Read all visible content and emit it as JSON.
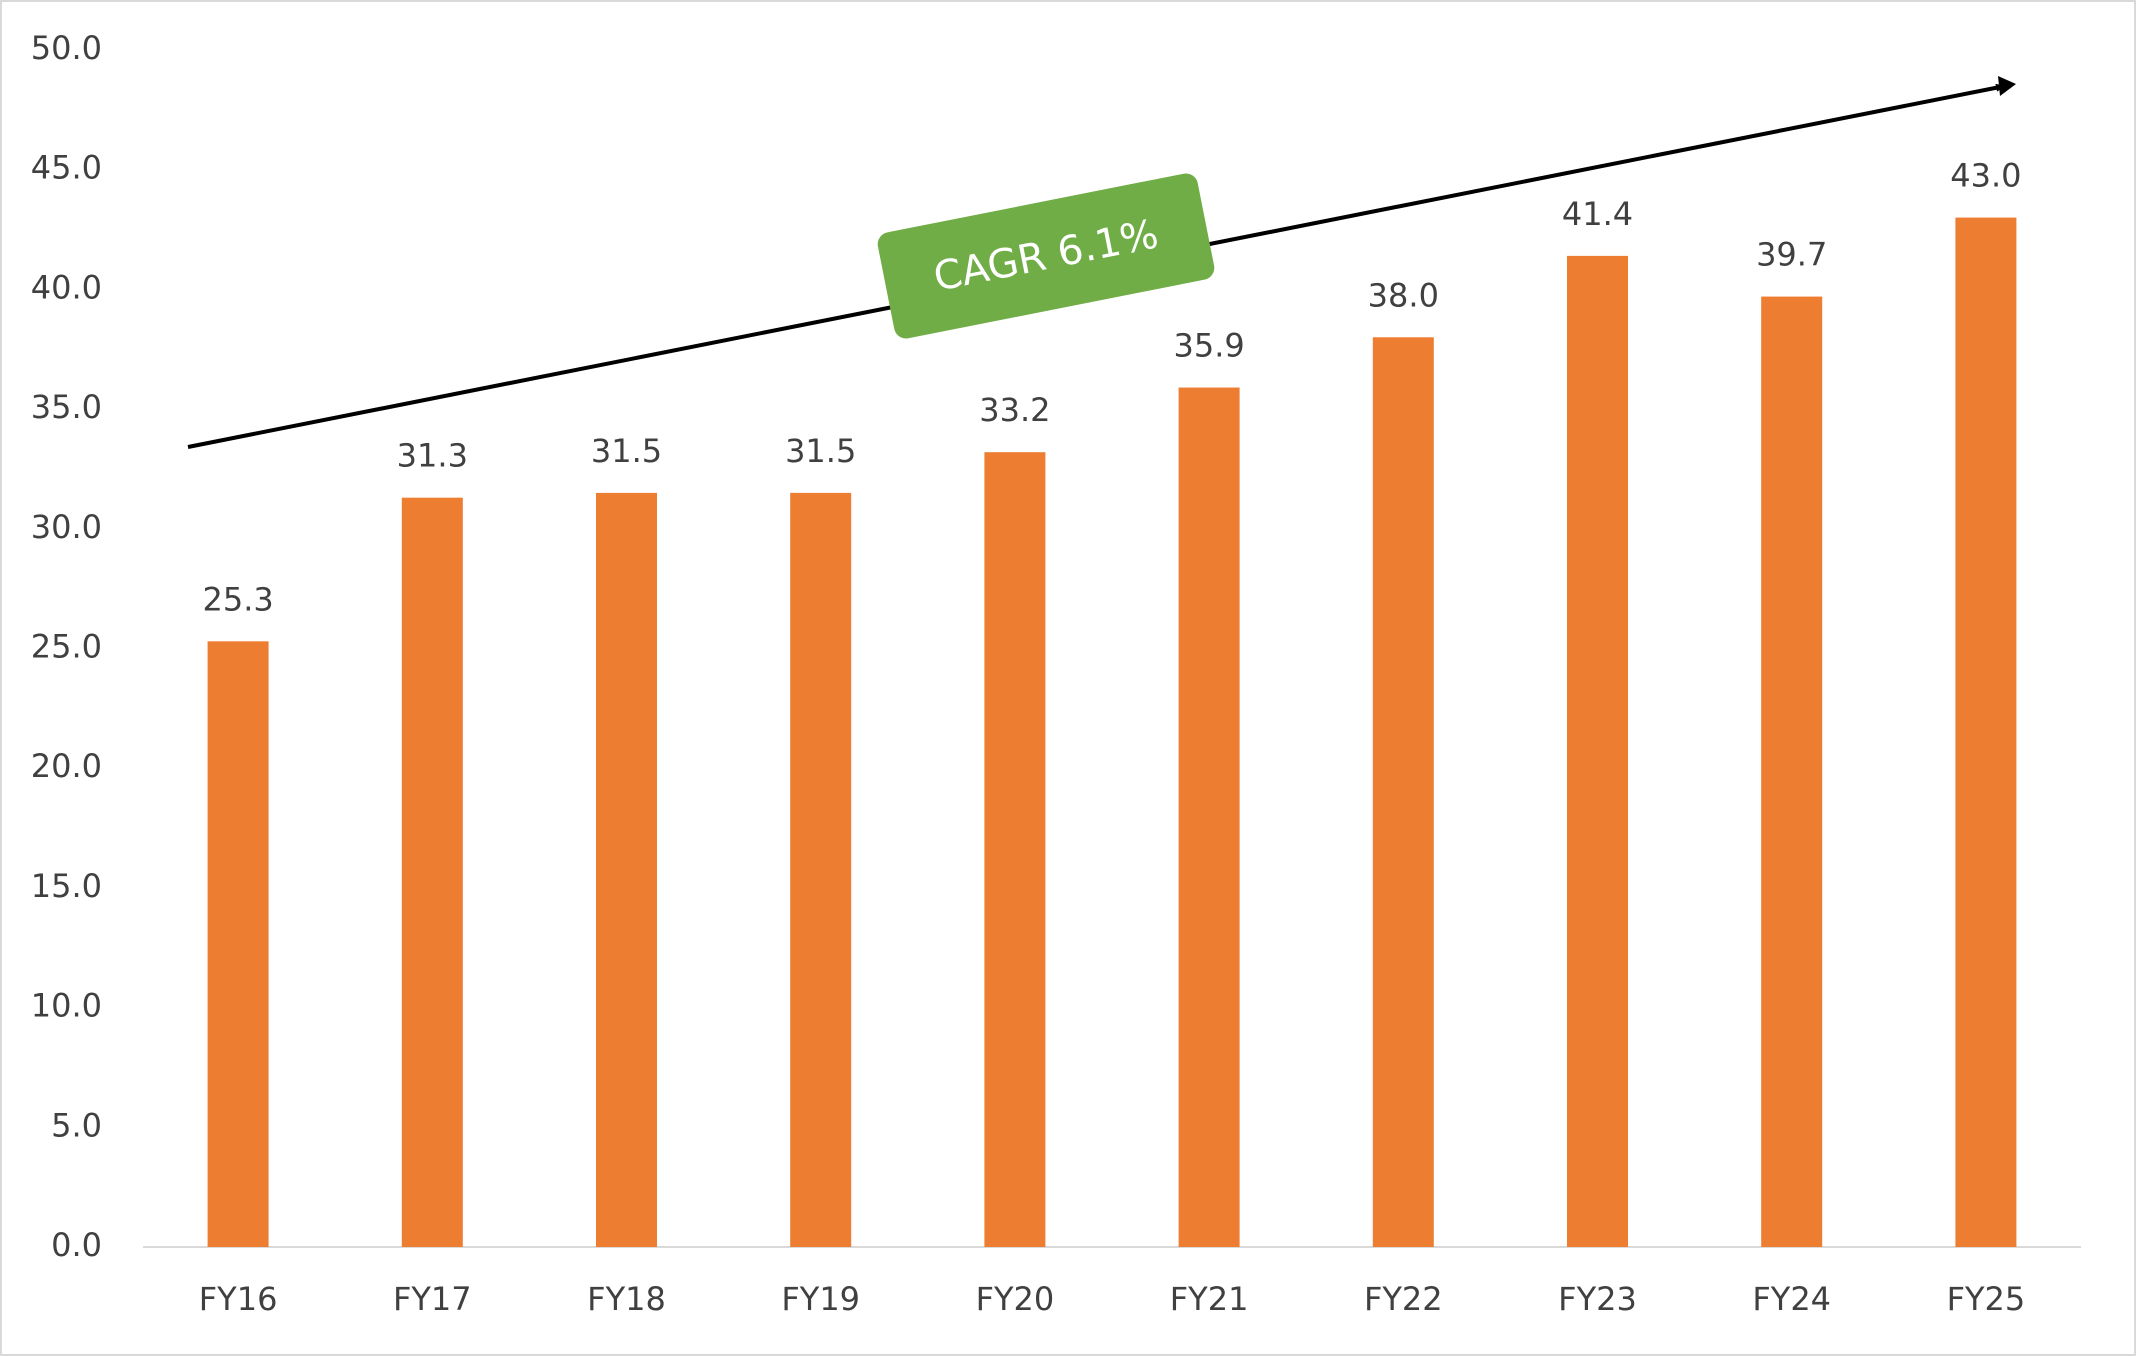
{
  "chart_data": {
    "type": "bar",
    "categories": [
      "FY16",
      "FY17",
      "FY18",
      "FY19",
      "FY20",
      "FY21",
      "FY22",
      "FY23",
      "FY24",
      "FY25"
    ],
    "values": [
      25.3,
      31.3,
      31.5,
      31.5,
      33.2,
      35.9,
      38.0,
      41.4,
      39.7,
      43.0
    ],
    "value_labels": [
      "25.3",
      "31.3",
      "31.5",
      "31.5",
      "33.2",
      "35.9",
      "38.0",
      "41.4",
      "39.7",
      "43.0"
    ],
    "color": "#ed7d31",
    "ylim": [
      0,
      50
    ],
    "yticks": [
      {
        "value": 0,
        "label": "0.0"
      },
      {
        "value": 5,
        "label": "5.0"
      },
      {
        "value": 10,
        "label": "10.0"
      },
      {
        "value": 15,
        "label": "15.0"
      },
      {
        "value": 20,
        "label": "20.0"
      },
      {
        "value": 25,
        "label": "25.0"
      },
      {
        "value": 30,
        "label": "30.0"
      },
      {
        "value": 35,
        "label": "35.0"
      },
      {
        "value": 40,
        "label": "40.0"
      },
      {
        "value": 45,
        "label": "45.0"
      },
      {
        "value": 50,
        "label": "50.0"
      }
    ],
    "grid": false,
    "annotation": "CAGR 6.1%"
  }
}
